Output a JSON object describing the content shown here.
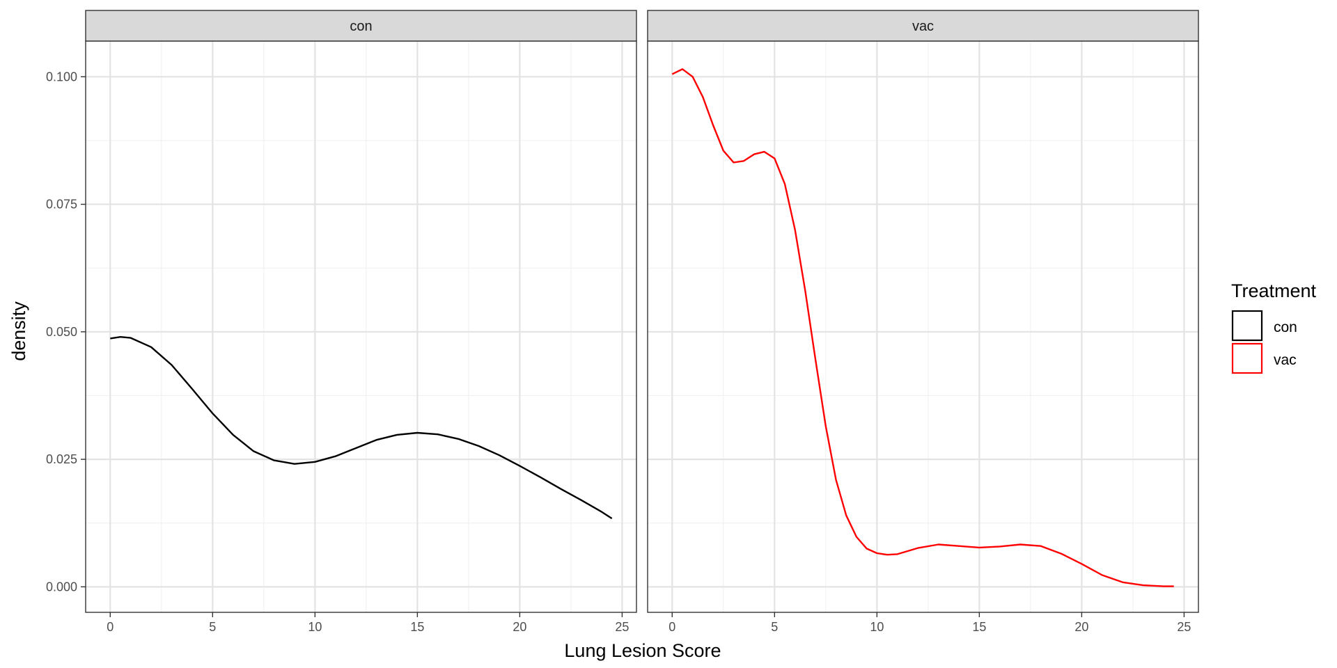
{
  "chart_data": {
    "type": "line",
    "subtype": "density",
    "xlabel": "Lung Lesion Score",
    "ylabel": "density",
    "xlim": [
      -1.2,
      25.7
    ],
    "ylim": [
      -0.005,
      0.107
    ],
    "x_ticks": [
      0,
      5,
      10,
      15,
      20,
      25
    ],
    "y_ticks": [
      0.0,
      0.025,
      0.05,
      0.075,
      0.1
    ],
    "y_tick_labels": [
      "0.000",
      "0.025",
      "0.050",
      "0.075",
      "0.100"
    ],
    "grid": true,
    "theme": "bw",
    "facets": [
      {
        "label": "con",
        "series": [
          {
            "name": "con",
            "color": "#000000",
            "x": [
              0,
              0.5,
              1,
              2,
              3,
              4,
              5,
              6,
              7,
              8,
              9,
              10,
              11,
              12,
              13,
              14,
              15,
              16,
              17,
              18,
              19,
              20,
              21,
              22,
              23,
              24,
              24.5
            ],
            "y": [
              0.0487,
              0.049,
              0.0488,
              0.047,
              0.0435,
              0.0388,
              0.034,
              0.0298,
              0.0266,
              0.0248,
              0.0241,
              0.0245,
              0.0256,
              0.0272,
              0.0288,
              0.0298,
              0.0302,
              0.0299,
              0.029,
              0.0276,
              0.0258,
              0.0237,
              0.0215,
              0.0192,
              0.017,
              0.0147,
              0.0134
            ]
          }
        ]
      },
      {
        "label": "vac",
        "series": [
          {
            "name": "vac",
            "color": "#ff0000",
            "x": [
              0,
              0.5,
              1,
              1.5,
              2,
              2.5,
              3,
              3.5,
              4,
              4.5,
              5,
              5.5,
              6,
              6.5,
              7,
              7.5,
              8,
              8.5,
              9,
              9.5,
              10,
              10.5,
              11,
              11.5,
              12,
              13,
              14,
              15,
              16,
              17,
              18,
              19,
              20,
              21,
              22,
              23,
              24,
              24.5
            ],
            "y": [
              0.1005,
              0.1015,
              0.1,
              0.096,
              0.0905,
              0.0855,
              0.0832,
              0.0835,
              0.0848,
              0.0853,
              0.084,
              0.079,
              0.07,
              0.058,
              0.0445,
              0.0315,
              0.021,
              0.014,
              0.0098,
              0.0075,
              0.0066,
              0.0063,
              0.0064,
              0.007,
              0.0076,
              0.0083,
              0.008,
              0.0077,
              0.0079,
              0.0083,
              0.008,
              0.0065,
              0.0045,
              0.0023,
              0.0009,
              0.0003,
              0.0001,
              0.0001
            ]
          }
        ]
      }
    ],
    "legend": {
      "title": "Treatment",
      "placement": "right",
      "entries": [
        {
          "label": "con",
          "color": "#000000"
        },
        {
          "label": "vac",
          "color": "#ff0000"
        }
      ]
    }
  }
}
